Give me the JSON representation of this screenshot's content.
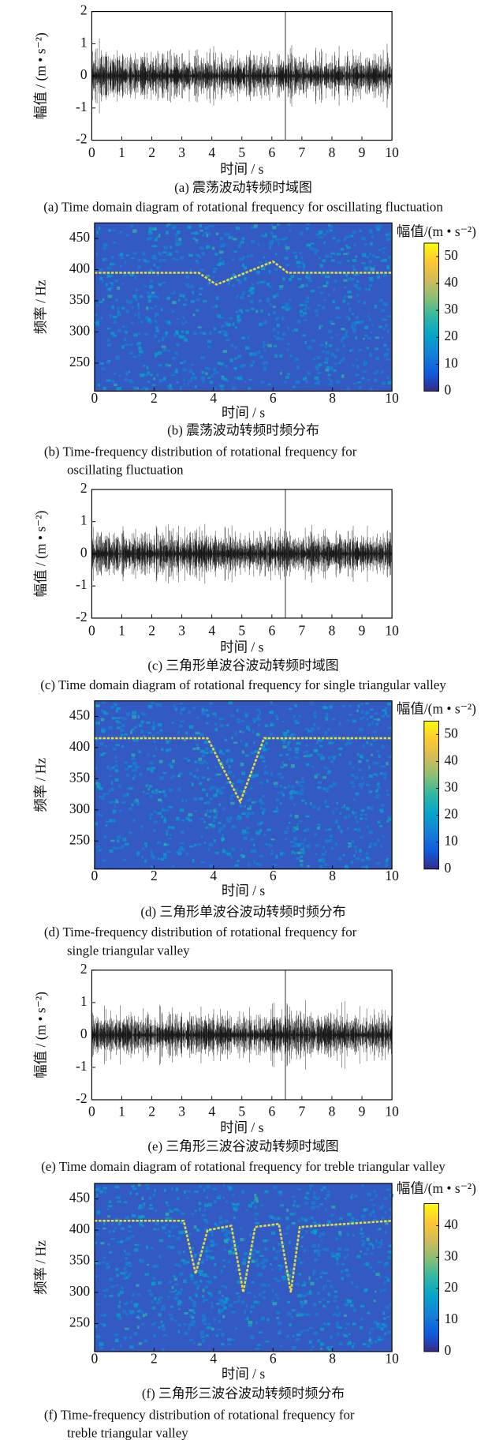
{
  "chart_data": [
    {
      "type": "line",
      "xlabel": "时间 / s",
      "ylabel": "幅值 / (m • s⁻²)",
      "xlim": [
        0,
        10
      ],
      "xticks": [
        0,
        1,
        2,
        3,
        4,
        5,
        6,
        7,
        8,
        9,
        10
      ],
      "ylim": [
        -2,
        2
      ],
      "yticks": [
        -2,
        -1,
        0,
        1,
        2
      ],
      "color": "#000000",
      "title": "(a) 震荡波动转频时域图",
      "subtitle": [
        "(a) Time domain diagram of rotational frequency for oscillating fluctuation"
      ]
    },
    {
      "type": "heatmap",
      "xlabel": "时间 / s",
      "ylabel": "频率 / Hz",
      "xlim": [
        0,
        10
      ],
      "xticks": [
        0,
        2,
        4,
        6,
        8,
        10
      ],
      "ylim": [
        205,
        475
      ],
      "yticks": [
        250,
        300,
        350,
        400,
        450
      ],
      "ridge": {
        "x": [
          0,
          3.5,
          4.1,
          6.0,
          6.5,
          10
        ],
        "y": [
          395,
          395,
          376,
          413,
          395,
          395
        ],
        "color": "#e3dc3a"
      },
      "colorbar": {
        "label": "幅值/(m • s⁻²)",
        "lim": [
          0,
          55
        ],
        "ticks": [
          0,
          10,
          20,
          30,
          40,
          50
        ]
      },
      "colormap": [
        "#352a87",
        "#0f5cdd",
        "#1481d6",
        "#06a4ca",
        "#2eb7a4",
        "#87bf77",
        "#d1bb59",
        "#fec832",
        "#f9fb0e"
      ],
      "title": "(b) 震荡波动转频时频分布",
      "subtitle": [
        "(b) Time-frequency distribution of rotational frequency for",
        "oscillating fluctuation"
      ]
    },
    {
      "type": "line",
      "xlabel": "时间 / s",
      "ylabel": "幅值 / (m • s⁻²)",
      "xlim": [
        0,
        10
      ],
      "xticks": [
        0,
        1,
        2,
        3,
        4,
        5,
        6,
        7,
        8,
        9,
        10
      ],
      "ylim": [
        -2,
        2
      ],
      "yticks": [
        -2,
        -1,
        0,
        1,
        2
      ],
      "color": "#000000",
      "title": "(c) 三角形单波谷波动转频时域图",
      "subtitle": [
        "(c) Time domain diagram of rotational frequency for single triangular valley"
      ]
    },
    {
      "type": "heatmap",
      "xlabel": "时间 / s",
      "ylabel": "频率 / Hz",
      "xlim": [
        0,
        10
      ],
      "xticks": [
        0,
        2,
        4,
        6,
        8,
        10
      ],
      "ylim": [
        205,
        475
      ],
      "yticks": [
        250,
        300,
        350,
        400,
        450
      ],
      "ridge": {
        "x": [
          0,
          3.8,
          4.9,
          5.7,
          10
        ],
        "y": [
          415,
          415,
          313,
          415,
          415
        ],
        "color": "#e3dc3a"
      },
      "colorbar": {
        "label": "幅值/(m • s⁻²)",
        "lim": [
          0,
          55
        ],
        "ticks": [
          0,
          10,
          20,
          30,
          40,
          50
        ]
      },
      "colormap": [
        "#352a87",
        "#0f5cdd",
        "#1481d6",
        "#06a4ca",
        "#2eb7a4",
        "#87bf77",
        "#d1bb59",
        "#fec832",
        "#f9fb0e"
      ],
      "title": "(d) 三角形单波谷波动转频时频分布",
      "subtitle": [
        "(d) Time-frequency distribution of rotational frequency for",
        "single triangular valley"
      ]
    },
    {
      "type": "line",
      "xlabel": "时间 / s",
      "ylabel": "幅值 / (m • s⁻²)",
      "xlim": [
        0,
        10
      ],
      "xticks": [
        0,
        1,
        2,
        3,
        4,
        5,
        6,
        7,
        8,
        9,
        10
      ],
      "ylim": [
        -2,
        2
      ],
      "yticks": [
        -2,
        -1,
        0,
        1,
        2
      ],
      "color": "#000000",
      "title": "(e) 三角形三波谷波动转频时域图",
      "subtitle": [
        "(e) Time domain diagram of rotational frequency for treble triangular valley"
      ]
    },
    {
      "type": "heatmap",
      "xlabel": "时间 / s",
      "ylabel": "频率 / Hz",
      "xlim": [
        0,
        10
      ],
      "xticks": [
        0,
        2,
        4,
        6,
        8,
        10
      ],
      "ylim": [
        205,
        475
      ],
      "yticks": [
        250,
        300,
        350,
        400,
        450
      ],
      "ridge": {
        "x": [
          0,
          3.0,
          3.4,
          3.8,
          4.6,
          5.0,
          5.4,
          6.2,
          6.6,
          6.9,
          10
        ],
        "y": [
          415,
          415,
          330,
          400,
          407,
          300,
          405,
          410,
          300,
          405,
          415
        ],
        "color": "#e3dc3a"
      },
      "colorbar": {
        "label": "幅值/(m • s⁻²)",
        "lim": [
          0,
          47
        ],
        "ticks": [
          0,
          10,
          20,
          30,
          40
        ]
      },
      "colormap": [
        "#352a87",
        "#0f5cdd",
        "#1481d6",
        "#06a4ca",
        "#2eb7a4",
        "#87bf77",
        "#d1bb59",
        "#fec832",
        "#f9fb0e"
      ],
      "title": "(f) 三角形三波谷波动转频时频分布",
      "subtitle": [
        "(f) Time-frequency distribution of rotational frequency for",
        "treble triangular valley"
      ]
    }
  ]
}
